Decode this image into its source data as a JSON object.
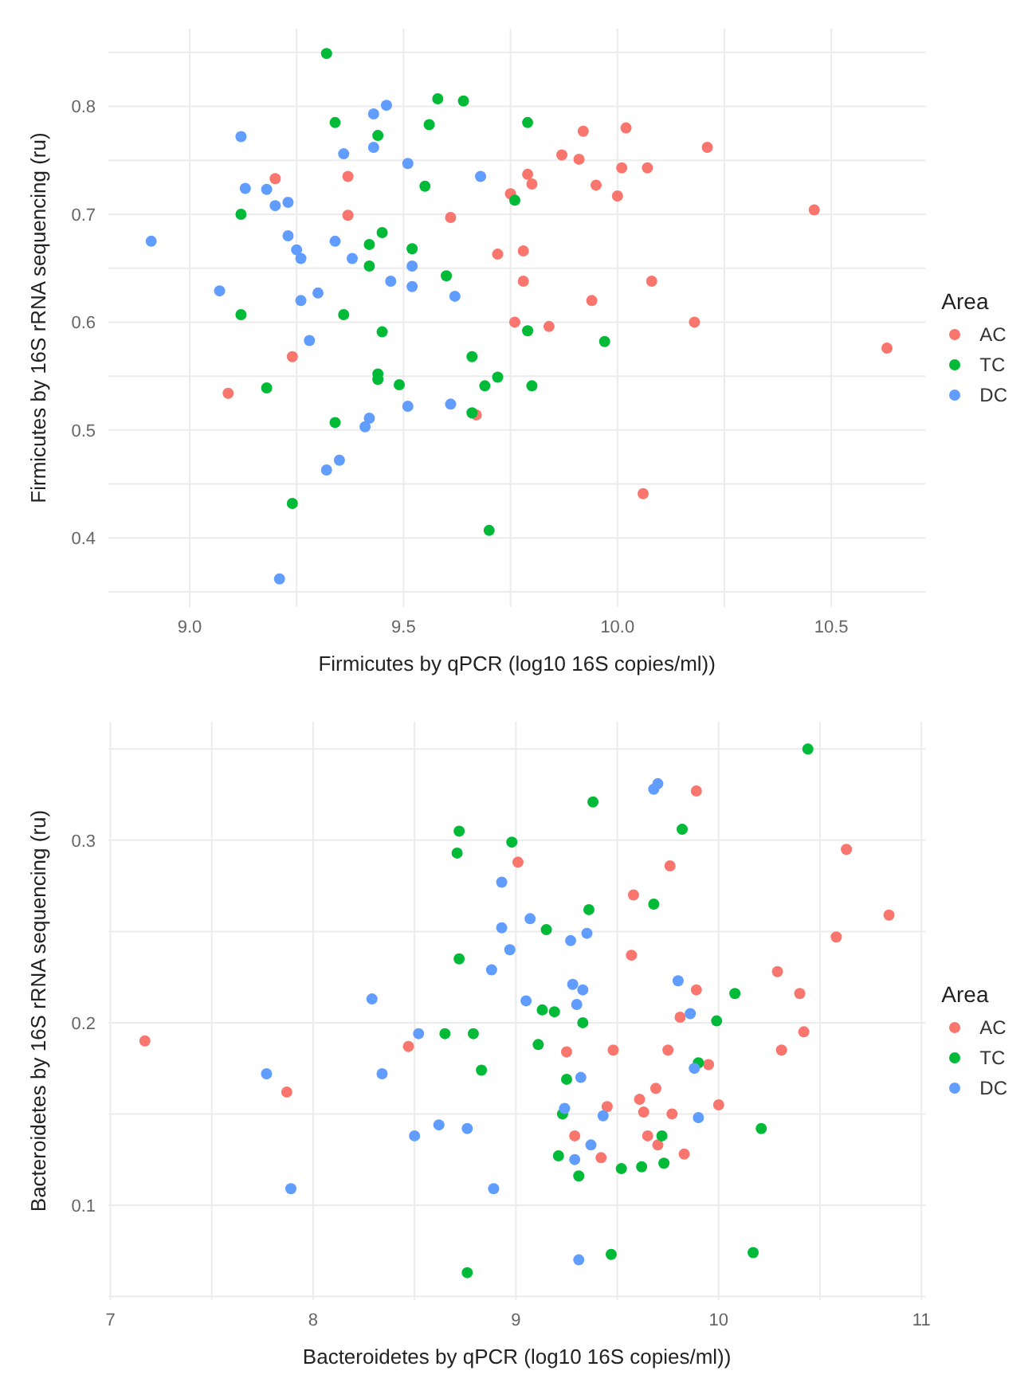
{
  "chart_data": [
    {
      "type": "scatter",
      "xlabel": "Firmicutes by qPCR (log10 16S copies/ml))",
      "ylabel": "Firmicutes by 16S rRNA sequencing (ru)",
      "legend_title": "Area",
      "legend": "right",
      "grid": true,
      "marker": "circle",
      "xlim": [
        8.81,
        10.72
      ],
      "ylim": [
        0.336,
        0.872
      ],
      "xticks": [
        {
          "value": 9,
          "label": "9.0"
        },
        {
          "value": 9.25,
          "label": null
        },
        {
          "value": 9.5,
          "label": "9.5"
        },
        {
          "value": 9.75,
          "label": null
        },
        {
          "value": 10,
          "label": "10.0"
        },
        {
          "value": 10.25,
          "label": null
        },
        {
          "value": 10.5,
          "label": "10.5"
        }
      ],
      "yticks": [
        {
          "value": 0.35,
          "label": null
        },
        0.4,
        {
          "value": 0.45,
          "label": null
        },
        0.5,
        {
          "value": 0.55,
          "label": null
        },
        0.6,
        {
          "value": 0.65,
          "label": null
        },
        0.7,
        {
          "value": 0.75,
          "label": null
        },
        0.8,
        {
          "value": 0.85,
          "label": null
        }
      ],
      "series": [
        {
          "name": "AC",
          "color": "#f8766d",
          "x": [
            9.09,
            9.2,
            9.24,
            9.37,
            9.37,
            9.61,
            9.67,
            9.92,
            10.02,
            10.21,
            9.87,
            9.91,
            10.01,
            10.07,
            9.79,
            9.8,
            9.95,
            9.75,
            10.0,
            10.46,
            9.72,
            9.78,
            9.78,
            10.08,
            9.94,
            9.76,
            9.84,
            10.18,
            10.63,
            10.06
          ],
          "values": [
            0.534,
            0.733,
            0.568,
            0.735,
            0.699,
            0.697,
            0.514,
            0.777,
            0.78,
            0.762,
            0.755,
            0.751,
            0.743,
            0.743,
            0.737,
            0.728,
            0.727,
            0.719,
            0.717,
            0.704,
            0.663,
            0.666,
            0.638,
            0.638,
            0.62,
            0.6,
            0.596,
            0.6,
            0.576,
            0.441
          ]
        },
        {
          "name": "TC",
          "color": "#00ba38",
          "x": [
            9.32,
            9.34,
            9.58,
            9.64,
            9.56,
            9.44,
            9.55,
            9.12,
            9.45,
            9.42,
            9.52,
            9.42,
            9.6,
            9.12,
            9.36,
            9.45,
            9.44,
            9.44,
            9.49,
            9.18,
            9.34,
            9.24,
            9.79,
            9.76,
            9.79,
            9.97,
            9.66,
            9.72,
            9.69,
            9.8,
            9.66,
            9.7
          ],
          "values": [
            0.849,
            0.785,
            0.807,
            0.805,
            0.783,
            0.773,
            0.726,
            0.7,
            0.683,
            0.672,
            0.668,
            0.652,
            0.643,
            0.607,
            0.607,
            0.591,
            0.552,
            0.547,
            0.542,
            0.539,
            0.507,
            0.432,
            0.785,
            0.713,
            0.592,
            0.582,
            0.568,
            0.549,
            0.541,
            0.541,
            0.516,
            0.407
          ]
        },
        {
          "name": "DC",
          "color": "#619cff",
          "x": [
            9.46,
            9.43,
            9.12,
            9.36,
            9.43,
            9.51,
            9.68,
            9.13,
            9.18,
            9.23,
            9.2,
            9.23,
            8.91,
            9.34,
            9.25,
            9.26,
            9.38,
            9.52,
            9.47,
            9.52,
            9.07,
            9.3,
            9.62,
            9.26,
            9.28,
            9.51,
            9.61,
            9.42,
            9.41,
            9.35,
            9.32,
            9.21
          ],
          "values": [
            0.801,
            0.793,
            0.772,
            0.756,
            0.762,
            0.747,
            0.735,
            0.724,
            0.723,
            0.711,
            0.708,
            0.68,
            0.675,
            0.675,
            0.667,
            0.659,
            0.659,
            0.652,
            0.638,
            0.633,
            0.629,
            0.627,
            0.624,
            0.62,
            0.583,
            0.522,
            0.524,
            0.511,
            0.503,
            0.472,
            0.463,
            0.362
          ]
        }
      ]
    },
    {
      "type": "scatter",
      "xlabel": "Bacteroidetes by qPCR (log10 16S copies/ml))",
      "ylabel": "Bacteroidetes by 16S rRNA sequencing (ru)",
      "legend_title": "Area",
      "legend": "right",
      "grid": true,
      "marker": "circle",
      "xlim": [
        6.99,
        11.02
      ],
      "ylim": [
        0.048,
        0.365
      ],
      "xticks": [
        7,
        {
          "value": 7.5,
          "label": null
        },
        8,
        {
          "value": 8.5,
          "label": null
        },
        9,
        {
          "value": 9.5,
          "label": null
        },
        10,
        {
          "value": 10.5,
          "label": null
        },
        11
      ],
      "yticks": [
        {
          "value": 0.05,
          "label": null
        },
        0.1,
        {
          "value": 0.15,
          "label": null
        },
        0.2,
        {
          "value": 0.25,
          "label": null
        },
        0.3,
        {
          "value": 0.35,
          "label": null
        }
      ],
      "series": [
        {
          "name": "AC",
          "color": "#f8766d",
          "x": [
            7.17,
            7.87,
            8.47,
            9.89,
            10.63,
            9.01,
            9.76,
            9.58,
            10.84,
            10.58,
            9.57,
            10.29,
            9.89,
            10.4,
            9.81,
            10.42,
            9.25,
            9.48,
            9.75,
            10.31,
            9.95,
            9.69,
            9.61,
            9.45,
            9.63,
            9.77,
            10.0,
            9.29,
            9.65,
            9.7,
            9.42,
            9.83
          ],
          "values": [
            0.19,
            0.162,
            0.187,
            0.327,
            0.295,
            0.288,
            0.286,
            0.27,
            0.259,
            0.247,
            0.237,
            0.228,
            0.218,
            0.216,
            0.203,
            0.195,
            0.184,
            0.185,
            0.185,
            0.185,
            0.177,
            0.164,
            0.158,
            0.154,
            0.151,
            0.15,
            0.155,
            0.138,
            0.138,
            0.133,
            0.126,
            0.128
          ]
        },
        {
          "name": "TC",
          "color": "#00ba38",
          "x": [
            8.72,
            8.71,
            8.72,
            8.65,
            8.79,
            8.83,
            8.76,
            10.44,
            9.38,
            9.82,
            8.98,
            9.68,
            9.36,
            9.15,
            10.08,
            9.13,
            9.19,
            9.33,
            9.99,
            9.11,
            9.9,
            9.25,
            9.23,
            10.21,
            9.72,
            9.21,
            9.52,
            9.62,
            9.73,
            9.31,
            9.47,
            10.17
          ],
          "values": [
            0.305,
            0.293,
            0.235,
            0.194,
            0.194,
            0.174,
            0.063,
            0.35,
            0.321,
            0.306,
            0.299,
            0.265,
            0.262,
            0.251,
            0.216,
            0.207,
            0.206,
            0.2,
            0.201,
            0.188,
            0.178,
            0.169,
            0.15,
            0.142,
            0.138,
            0.127,
            0.12,
            0.121,
            0.123,
            0.116,
            0.073,
            0.074
          ]
        },
        {
          "name": "DC",
          "color": "#619cff",
          "x": [
            7.77,
            7.89,
            8.29,
            8.34,
            8.52,
            8.5,
            8.62,
            8.76,
            8.88,
            8.89,
            9.68,
            9.7,
            8.93,
            9.07,
            8.93,
            8.97,
            9.27,
            9.35,
            9.28,
            9.33,
            9.05,
            9.3,
            9.8,
            9.86,
            9.32,
            9.88,
            9.24,
            9.43,
            9.9,
            9.37,
            9.29,
            9.31
          ],
          "values": [
            0.172,
            0.109,
            0.213,
            0.172,
            0.194,
            0.138,
            0.144,
            0.142,
            0.229,
            0.109,
            0.328,
            0.331,
            0.277,
            0.257,
            0.252,
            0.24,
            0.245,
            0.249,
            0.221,
            0.218,
            0.212,
            0.21,
            0.223,
            0.205,
            0.17,
            0.175,
            0.153,
            0.149,
            0.148,
            0.133,
            0.125,
            0.07
          ]
        }
      ]
    }
  ]
}
